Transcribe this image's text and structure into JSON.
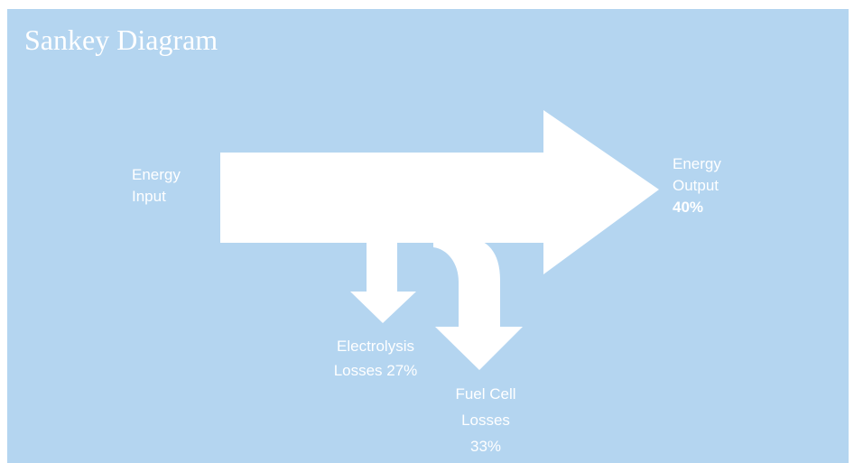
{
  "title": "Sankey Diagram",
  "labels": {
    "input": {
      "line1": "Energy",
      "line2": "Input"
    },
    "output": {
      "line1": "Energy",
      "line2": "Output",
      "line3": "40%"
    },
    "electrolysis": {
      "line1": "Electrolysis",
      "line2": "Losses 27%"
    },
    "fuel_cell": {
      "line1": "Fuel Cell",
      "line2": "Losses",
      "line3": "33%"
    }
  },
  "flows": [
    {
      "from": "Energy Input",
      "to": "Energy Output",
      "percent": 40
    },
    {
      "from": "Energy Input",
      "to": "Electrolysis Losses",
      "percent": 27
    },
    {
      "from": "Energy Input",
      "to": "Fuel Cell Losses",
      "percent": 33
    }
  ],
  "colors": {
    "background": "#b4d5f0",
    "flow": "#ffffff",
    "text": "#ffffff"
  }
}
